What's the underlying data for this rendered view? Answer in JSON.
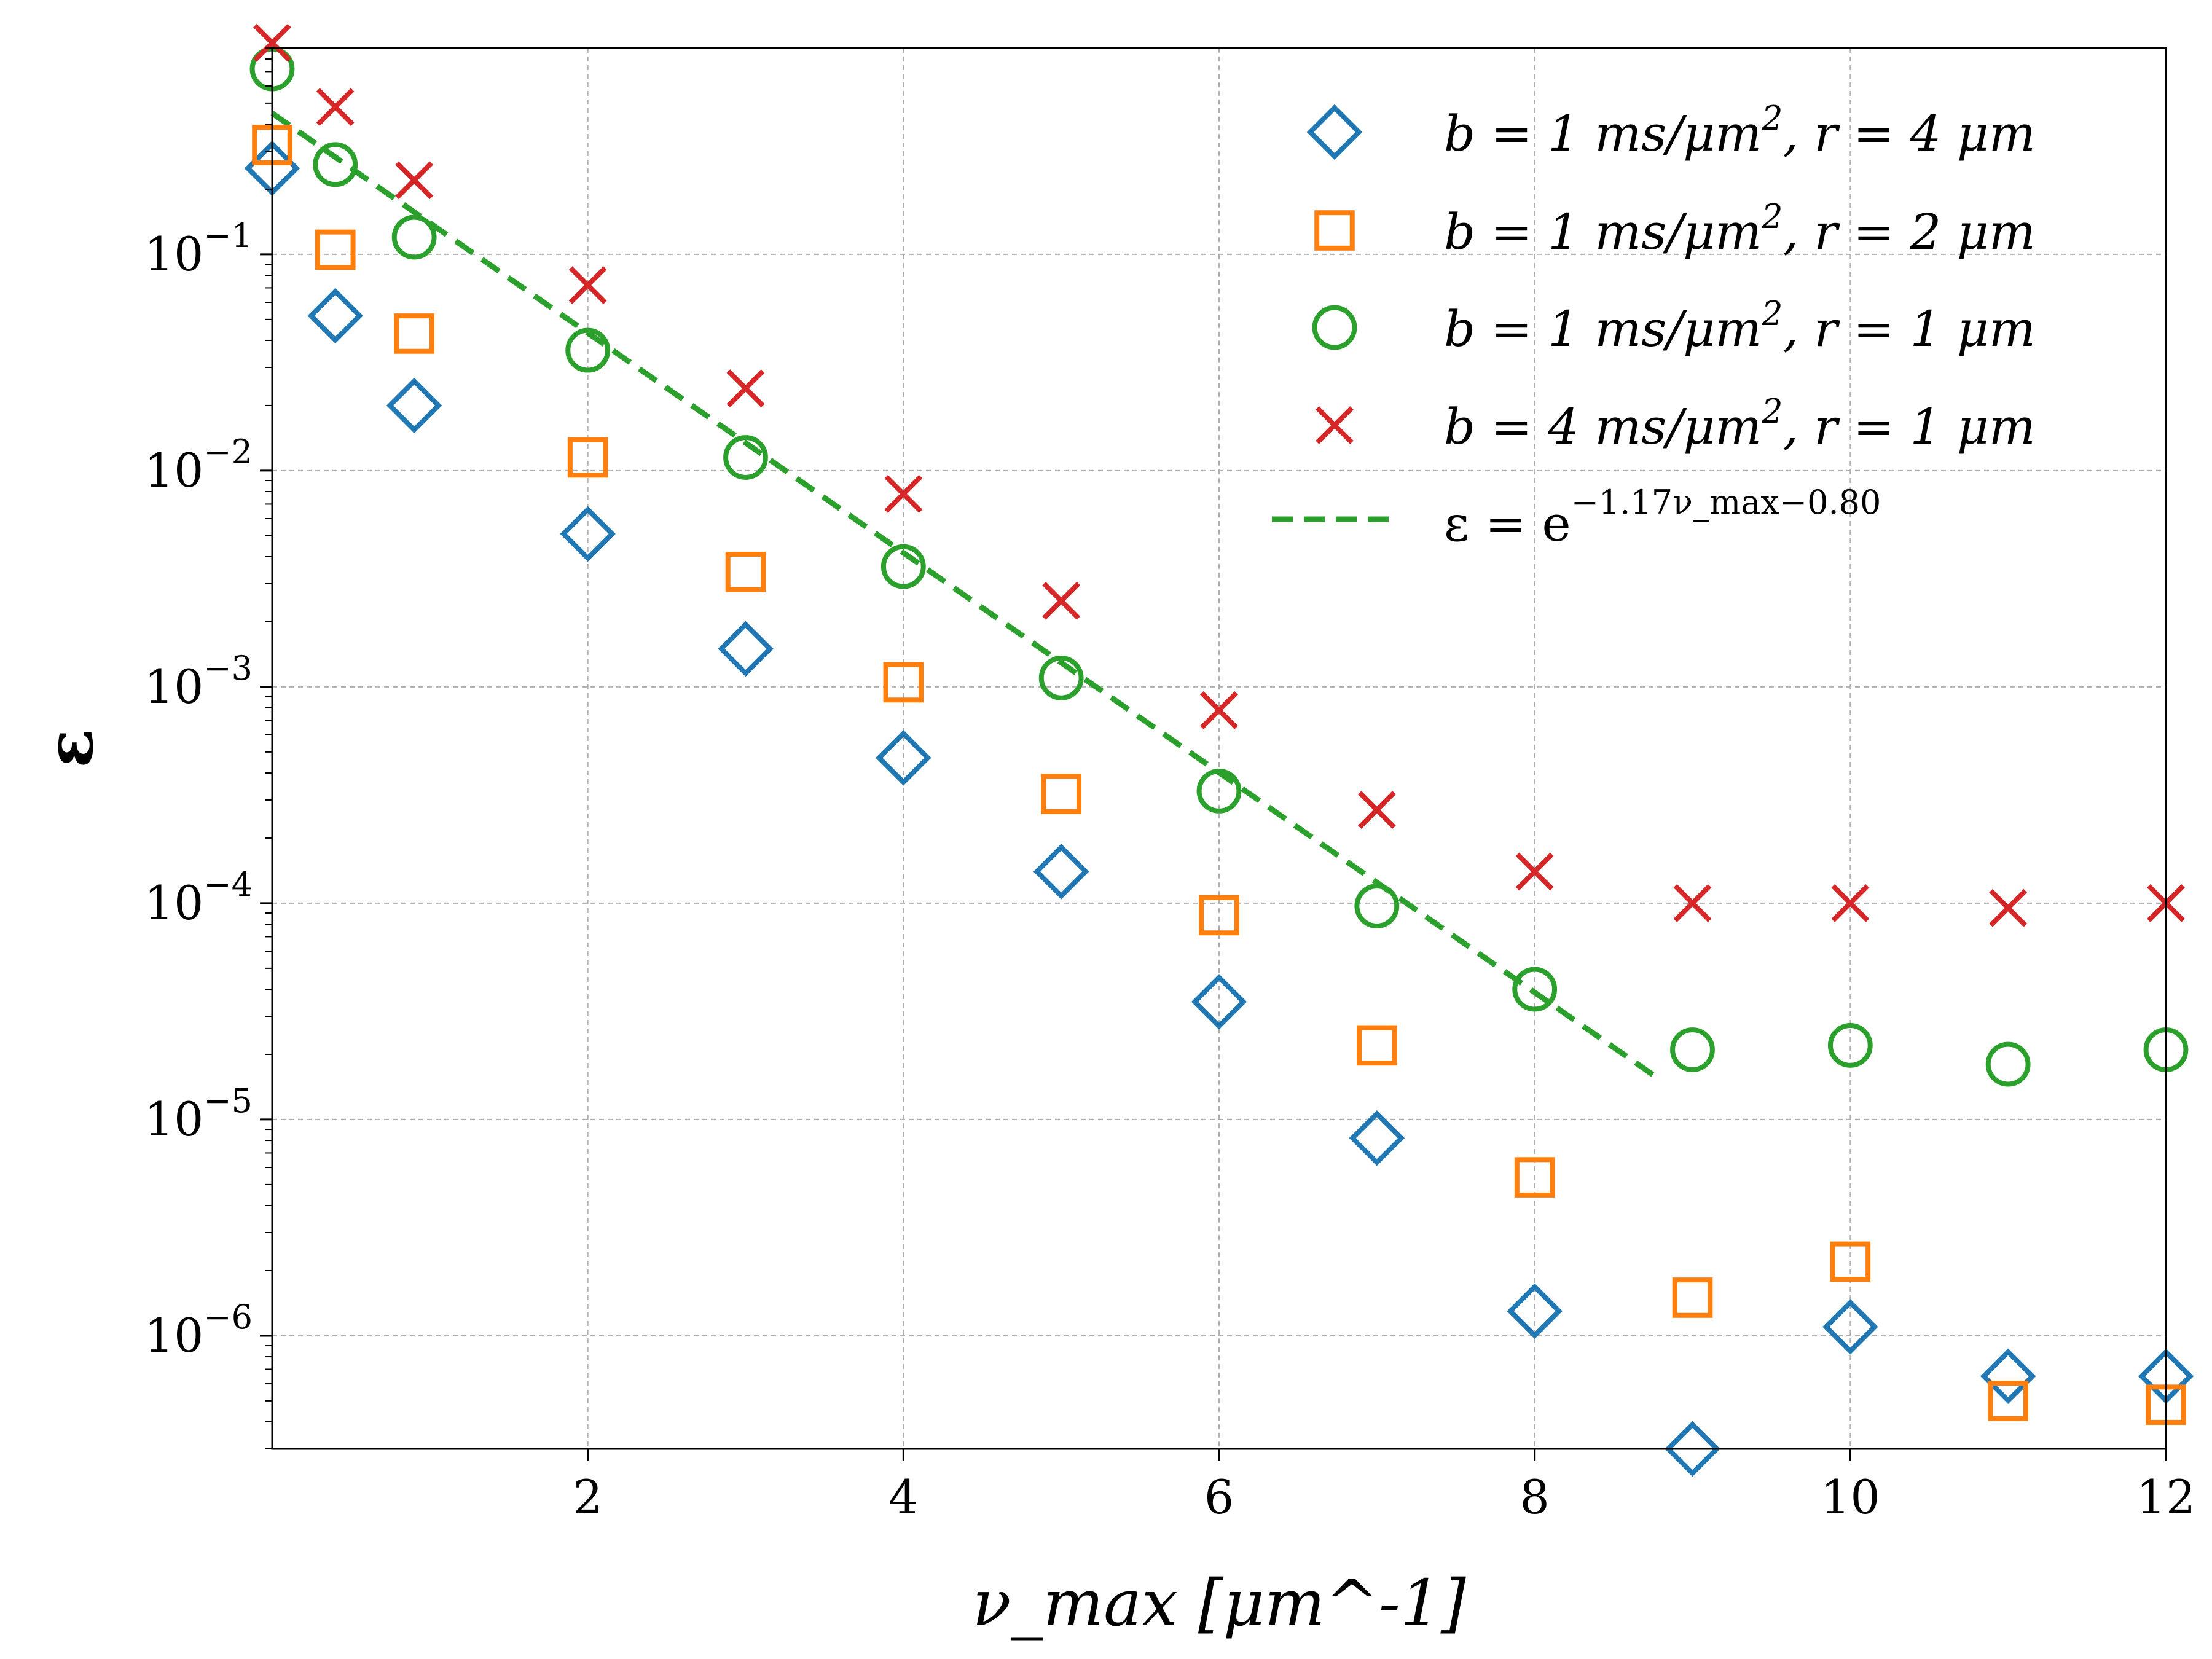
{
  "chart_data": {
    "type": "scatter",
    "title": "",
    "xlabel": "ν_max [μm^-1]",
    "ylabel": "ε",
    "xscale": "linear",
    "yscale": "log",
    "xlim": [
      0,
      12
    ],
    "ylim": [
      3e-07,
      0.9
    ],
    "xticks": [
      2,
      4,
      6,
      8,
      10,
      12
    ],
    "yticks": [
      {
        "value": 0.1,
        "base": "10",
        "exp": "−1"
      },
      {
        "value": 0.01,
        "base": "10",
        "exp": "−2"
      },
      {
        "value": 0.001,
        "base": "10",
        "exp": "−3"
      },
      {
        "value": 0.0001,
        "base": "10",
        "exp": "−4"
      },
      {
        "value": 1e-05,
        "base": "10",
        "exp": "−5"
      },
      {
        "value": 1e-06,
        "base": "10",
        "exp": "−6"
      }
    ],
    "grid": true,
    "legend_position": "top-right",
    "x": [
      0,
      0.4,
      0.9,
      2,
      3,
      4,
      5,
      6,
      7,
      8,
      9,
      10,
      11,
      12
    ],
    "series": [
      {
        "name": "b = 1 ms/μm², r = 4 μm",
        "legend_main": "b = 1 ms/μm",
        "legend_sup": "2",
        "legend_tail": ", r = 4 μm",
        "marker": "diamond",
        "color": "#1f77b4",
        "values": [
          0.25,
          0.052,
          0.02,
          0.0051,
          0.0015,
          0.00047,
          0.00014,
          3.5e-05,
          8.2e-06,
          1.3e-06,
          3e-07,
          1.1e-06,
          6.5e-07,
          6.5e-07
        ]
      },
      {
        "name": "b = 1 ms/μm², r = 2 μm",
        "legend_main": "b = 1 ms/μm",
        "legend_sup": "2",
        "legend_tail": ", r = 2 μm",
        "marker": "square",
        "color": "#ff7f0e",
        "values": [
          0.32,
          0.105,
          0.043,
          0.0115,
          0.0034,
          0.00105,
          0.00032,
          8.8e-05,
          2.2e-05,
          5.4e-06,
          1.5e-06,
          2.2e-06,
          5e-07,
          4.8e-07
        ]
      },
      {
        "name": "b = 1 ms/μm², r = 1 μm",
        "legend_main": "b = 1 ms/μm",
        "legend_sup": "2",
        "legend_tail": ", r = 1 μm",
        "marker": "circle",
        "color": "#2ca02c",
        "values": [
          0.72,
          0.26,
          0.12,
          0.036,
          0.0115,
          0.0036,
          0.0011,
          0.00033,
          9.7e-05,
          4e-05,
          2.1e-05,
          2.2e-05,
          1.8e-05,
          2.1e-05
        ]
      },
      {
        "name": "b = 4 ms/μm², r = 1 μm",
        "legend_main": "b = 4 ms/μm",
        "legend_sup": "2",
        "legend_tail": ", r = 1 μm",
        "marker": "x",
        "color": "#d62728",
        "values": [
          0.95,
          0.48,
          0.22,
          0.072,
          0.024,
          0.0078,
          0.0025,
          0.00078,
          0.00027,
          0.00014,
          0.0001,
          0.0001,
          9.5e-05,
          0.0001
        ]
      }
    ],
    "fit_line": {
      "label_main": "ε = e",
      "label_exp": "−1.17ν_max−0.80",
      "color": "#2ca02c",
      "style": "dashed",
      "slope": -1.17,
      "intercept": -0.8,
      "x_range": [
        0,
        8.8
      ]
    }
  }
}
